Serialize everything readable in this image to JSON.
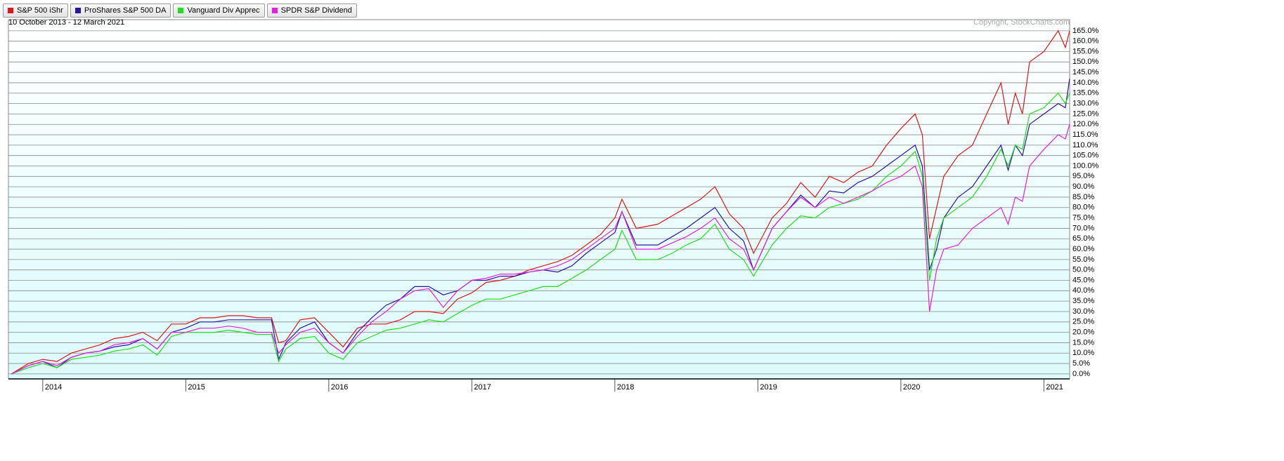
{
  "chart_data": {
    "type": "line",
    "subtitle": "10 October 2013 - 12 March 2021",
    "copyright": "Copyright, StockCharts.com",
    "x": [
      2013.78,
      2013.9,
      2014.0,
      2014.1,
      2014.2,
      2014.3,
      2014.4,
      2014.5,
      2014.6,
      2014.7,
      2014.8,
      2014.9,
      2015.0,
      2015.1,
      2015.2,
      2015.3,
      2015.4,
      2015.5,
      2015.6,
      2015.65,
      2015.7,
      2015.8,
      2015.9,
      2016.0,
      2016.1,
      2016.2,
      2016.3,
      2016.4,
      2016.5,
      2016.6,
      2016.7,
      2016.8,
      2016.9,
      2017.0,
      2017.1,
      2017.2,
      2017.3,
      2017.4,
      2017.5,
      2017.6,
      2017.7,
      2017.8,
      2017.9,
      2018.0,
      2018.05,
      2018.15,
      2018.3,
      2018.4,
      2018.5,
      2018.6,
      2018.7,
      2018.8,
      2018.9,
      2018.97,
      2019.1,
      2019.2,
      2019.3,
      2019.4,
      2019.5,
      2019.6,
      2019.7,
      2019.8,
      2019.9,
      2020.0,
      2020.1,
      2020.15,
      2020.2,
      2020.25,
      2020.3,
      2020.4,
      2020.5,
      2020.6,
      2020.7,
      2020.75,
      2020.8,
      2020.85,
      2020.9,
      2021.0,
      2021.1,
      2021.15,
      2021.18
    ],
    "series": [
      {
        "name": "S&P 500 iShr",
        "color": "#e0161b",
        "values": [
          0,
          5,
          7,
          6,
          10,
          12,
          14,
          17,
          18,
          20,
          16,
          24,
          24,
          27,
          27,
          28,
          28,
          27,
          27,
          15,
          16,
          26,
          27,
          20,
          13,
          22,
          24,
          24,
          26,
          30,
          30,
          29,
          36,
          39,
          44,
          45,
          47,
          50,
          52,
          54,
          57,
          62,
          67,
          75,
          84,
          70,
          72,
          76,
          80,
          84,
          90,
          77,
          70,
          58,
          75,
          82,
          92,
          85,
          95,
          92,
          97,
          100,
          110,
          118,
          125,
          115,
          65,
          80,
          95,
          105,
          110,
          125,
          140,
          120,
          135,
          125,
          150,
          155,
          165,
          157,
          165
        ]
      },
      {
        "name": "ProShares S&P 500 DA",
        "color": "#2a14a8",
        "values": [
          0,
          4,
          6,
          3,
          8,
          10,
          11,
          13,
          14,
          17,
          12,
          20,
          22,
          25,
          25,
          26,
          26,
          26,
          26,
          7,
          15,
          22,
          25,
          15,
          10,
          20,
          27,
          33,
          36,
          42,
          42,
          38,
          40,
          45,
          45,
          47,
          47,
          49,
          50,
          49,
          52,
          58,
          63,
          68,
          78,
          62,
          62,
          66,
          70,
          75,
          80,
          70,
          64,
          50,
          70,
          78,
          86,
          80,
          88,
          87,
          92,
          95,
          100,
          105,
          110,
          100,
          50,
          60,
          75,
          85,
          90,
          100,
          110,
          98,
          110,
          105,
          120,
          125,
          130,
          128,
          142
        ]
      },
      {
        "name": "Vanguard Div Apprec",
        "color": "#1ee01e",
        "values": [
          0,
          3,
          5,
          3,
          7,
          8,
          9,
          11,
          12,
          14,
          9,
          18,
          20,
          20,
          20,
          21,
          20,
          19,
          19,
          6,
          12,
          17,
          18,
          10,
          7,
          15,
          18,
          21,
          22,
          24,
          26,
          25,
          29,
          33,
          36,
          36,
          38,
          40,
          42,
          42,
          46,
          50,
          55,
          60,
          69,
          55,
          55,
          58,
          62,
          65,
          72,
          60,
          55,
          47,
          62,
          70,
          76,
          75,
          80,
          82,
          84,
          88,
          95,
          100,
          107,
          95,
          45,
          65,
          75,
          80,
          85,
          95,
          108,
          100,
          110,
          108,
          125,
          128,
          135,
          130,
          135
        ]
      },
      {
        "name": "SPDR S&P Dividend",
        "color": "#e81ee0",
        "values": [
          0,
          4,
          6,
          4,
          8,
          10,
          11,
          14,
          15,
          17,
          12,
          20,
          20,
          22,
          22,
          23,
          22,
          20,
          20,
          10,
          14,
          20,
          22,
          15,
          10,
          18,
          25,
          30,
          36,
          40,
          41,
          32,
          40,
          45,
          46,
          48,
          48,
          49,
          50,
          52,
          55,
          60,
          65,
          70,
          78,
          60,
          60,
          63,
          66,
          70,
          75,
          65,
          60,
          50,
          70,
          78,
          85,
          80,
          85,
          82,
          85,
          88,
          92,
          95,
          100,
          90,
          30,
          50,
          60,
          62,
          70,
          75,
          80,
          72,
          85,
          83,
          100,
          108,
          115,
          113,
          120
        ]
      }
    ],
    "xlim": [
      2013.76,
      2021.18
    ],
    "xticks": [
      2014,
      2015,
      2016,
      2017,
      2018,
      2019,
      2020,
      2021
    ],
    "ylim": [
      -2.4,
      169
    ],
    "yticks": [
      {
        "value": 0,
        "label": "0.0%"
      },
      {
        "value": 5,
        "label": "5.0%"
      },
      {
        "value": 10,
        "label": "10.0%"
      },
      {
        "value": 15,
        "label": "15.0%"
      },
      {
        "value": 20,
        "label": "20.0%"
      },
      {
        "value": 25,
        "label": "25.0%"
      },
      {
        "value": 30,
        "label": "30.0%"
      },
      {
        "value": 35,
        "label": "35.0%"
      },
      {
        "value": 40,
        "label": "40.0%"
      },
      {
        "value": 45,
        "label": "45.0%"
      },
      {
        "value": 50,
        "label": "50.0%"
      },
      {
        "value": 55,
        "label": "55.0%"
      },
      {
        "value": 60,
        "label": "60.0%"
      },
      {
        "value": 65,
        "label": "65.0%"
      },
      {
        "value": 70,
        "label": "70.0%"
      },
      {
        "value": 75,
        "label": "75.0%"
      },
      {
        "value": 80,
        "label": "80.0%"
      },
      {
        "value": 85,
        "label": "85.0%"
      },
      {
        "value": 90,
        "label": "90.0%"
      },
      {
        "value": 95,
        "label": "95.0%"
      },
      {
        "value": 100,
        "label": "100.0%"
      },
      {
        "value": 105,
        "label": "105.0%"
      },
      {
        "value": 110,
        "label": "110.0%"
      },
      {
        "value": 115,
        "label": "115.0%"
      },
      {
        "value": 120,
        "label": "120.0%"
      },
      {
        "value": 125,
        "label": "125.0%"
      },
      {
        "value": 130,
        "label": "130.0%"
      },
      {
        "value": 135,
        "label": "135.0%"
      },
      {
        "value": 140,
        "label": "140.0%"
      },
      {
        "value": 145,
        "label": "145.0%"
      },
      {
        "value": 150,
        "label": "150.0%"
      },
      {
        "value": 155,
        "label": "155.0%"
      },
      {
        "value": 160,
        "label": "160.0%"
      },
      {
        "value": 165,
        "label": "165.0%"
      }
    ],
    "grid": true
  }
}
